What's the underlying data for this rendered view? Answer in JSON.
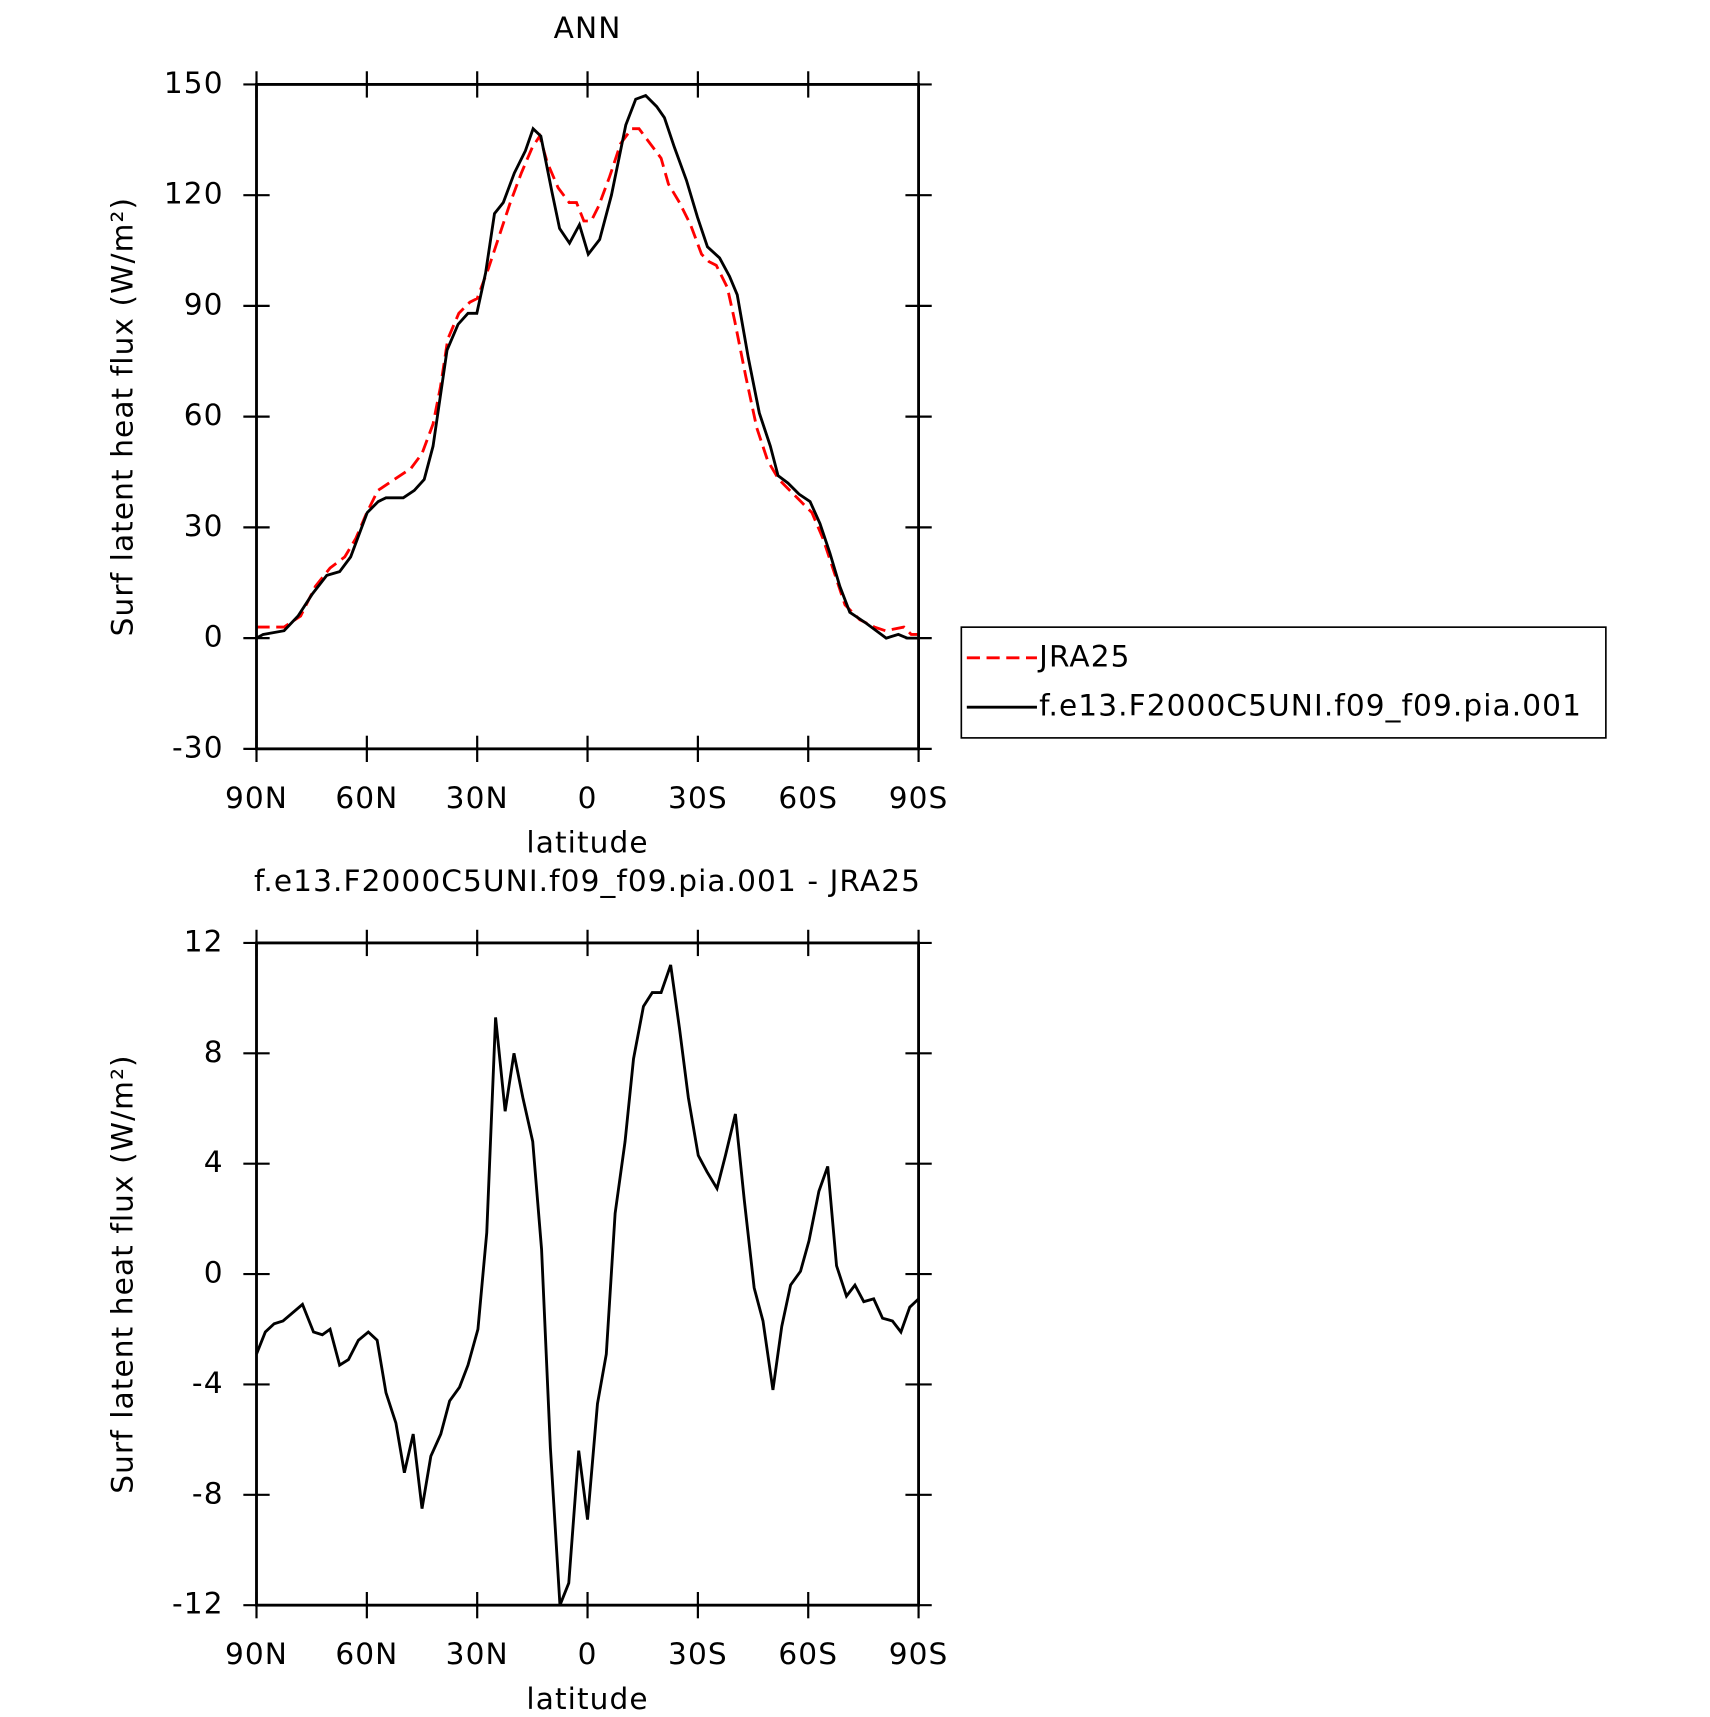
{
  "chart_data": [
    {
      "type": "line",
      "title": "ANN",
      "xlabel": "latitude",
      "ylabel": "Surf latent heat flux (W/m²)",
      "xlim": [
        90,
        -90
      ],
      "xticks": [
        {
          "value": 90,
          "label": "90N"
        },
        {
          "value": 60,
          "label": "60N"
        },
        {
          "value": 30,
          "label": "30N"
        },
        0,
        {
          "value": -30,
          "label": "30S"
        },
        {
          "value": -60,
          "label": "60S"
        },
        {
          "value": -90,
          "label": "90S"
        }
      ],
      "ylim": [
        -30,
        150
      ],
      "yticks": [
        -30,
        0,
        30,
        60,
        90,
        120,
        150
      ],
      "legend": "right",
      "series": [
        {
          "name": "JRA25",
          "color": "#ff0000",
          "dashed": true,
          "x": [
            90,
            82.5,
            78,
            74,
            70,
            66,
            63,
            60,
            57,
            54,
            51,
            48,
            45,
            42,
            40,
            38,
            35,
            32,
            30,
            27,
            24,
            21,
            18,
            15,
            13,
            11,
            8,
            5,
            3,
            1,
            -1,
            -3,
            -6,
            -9,
            -12,
            -14,
            -17,
            -20,
            -22,
            -25,
            -28,
            -31,
            -33,
            -35,
            -38,
            -40,
            -43,
            -46,
            -49,
            -52,
            -55,
            -58,
            -61,
            -64,
            -67,
            -70,
            -74,
            -78,
            -81,
            -86,
            -88,
            -90
          ],
          "values": [
            3,
            3,
            6,
            14,
            19,
            22,
            27,
            34,
            40,
            42,
            44,
            46,
            50,
            58,
            68,
            81,
            88,
            91,
            92,
            100,
            109,
            118,
            126,
            133,
            136,
            129,
            122,
            118,
            118,
            113,
            113,
            117,
            125,
            134,
            138,
            138,
            134,
            130,
            123,
            118,
            112,
            104,
            102,
            101,
            95,
            86,
            71,
            57,
            48,
            43,
            40,
            37,
            34,
            27,
            18,
            9,
            5,
            3,
            2,
            3,
            1,
            1
          ]
        },
        {
          "name": "f.e13.F2000C5UNI.f09_f09.pia.001",
          "color": "#000000",
          "dashed": false,
          "x": [
            90,
            88.2,
            82.5,
            78.7,
            74.8,
            70.9,
            67.4,
            64.4,
            59.9,
            56.9,
            54.8,
            50.1,
            47.1,
            44.4,
            42,
            38.2,
            35.2,
            32.5,
            30.1,
            27.7,
            25.3,
            22.9,
            19.9,
            16.9,
            14.8,
            12.7,
            9.7,
            7.6,
            4.9,
            2.2,
            -0.2,
            -3.3,
            -6.5,
            -10.4,
            -13.1,
            -15.8,
            -18.8,
            -20.9,
            -23.6,
            -26.9,
            -29.9,
            -32.6,
            -35.9,
            -38.6,
            -40.7,
            -43.7,
            -46.7,
            -49.7,
            -51.8,
            -54.5,
            -57.5,
            -60.5,
            -63.2,
            -65.9,
            -68.6,
            -71.3,
            -75.8,
            -81.2,
            -84.5,
            -86.9,
            -90
          ],
          "values": [
            0,
            1,
            2,
            6,
            12,
            17,
            18,
            22,
            34,
            37,
            38,
            38,
            40,
            43,
            52,
            78,
            85,
            88,
            88,
            99,
            115,
            118,
            126,
            132,
            138,
            136,
            121,
            111,
            107,
            112,
            104,
            108,
            120,
            139,
            146,
            147,
            144,
            141,
            133,
            124,
            114,
            106,
            103,
            98,
            93,
            76,
            61,
            52,
            44,
            42,
            39,
            37,
            31,
            23,
            14,
            7,
            4,
            0,
            1,
            0,
            0
          ]
        }
      ]
    },
    {
      "type": "line",
      "title": "f.e13.F2000C5UNI.f09_f09.pia.001 - JRA25",
      "xlabel": "latitude",
      "ylabel": "Surf latent heat flux (W/m²)",
      "xlim": [
        90,
        -90
      ],
      "xticks": [
        {
          "value": 90,
          "label": "90N"
        },
        {
          "value": 60,
          "label": "60N"
        },
        {
          "value": 30,
          "label": "30N"
        },
        0,
        {
          "value": -30,
          "label": "30S"
        },
        {
          "value": -60,
          "label": "60S"
        },
        {
          "value": -90,
          "label": "90S"
        }
      ],
      "ylim": [
        -12,
        12
      ],
      "yticks": [
        -12,
        -8,
        -4,
        0,
        4,
        8,
        12
      ],
      "series": [
        {
          "color": "#000000",
          "dashed": false,
          "x": [
            90,
            87.6,
            85.2,
            82.8,
            77.5,
            74.5,
            72.1,
            70,
            67.4,
            65,
            62.3,
            59.6,
            57.2,
            54.8,
            52.1,
            49.8,
            47.4,
            45,
            42.6,
            39.9,
            37.5,
            34.8,
            32.5,
            29.8,
            27.4,
            25,
            22.4,
            20,
            17.6,
            14.9,
            12.5,
            10.1,
            7.5,
            5.1,
            2.4,
            0,
            -2.7,
            -5.1,
            -7.5,
            -10.2,
            -12.5,
            -15.2,
            -17.6,
            -20,
            -22.6,
            -25,
            -27.4,
            -30.1,
            -32.5,
            -35.2,
            -37.5,
            -40.2,
            -42.6,
            -45.3,
            -47.7,
            -50.4,
            -52.8,
            -55.2,
            -57.9,
            -60.2,
            -62.9,
            -65.3,
            -67.7,
            -70.4,
            -72.7,
            -75.1,
            -77.8,
            -80.2,
            -82.9,
            -85.2,
            -87.6,
            -90
          ],
          "values": [
            -2.9,
            -2.1,
            -1.8,
            -1.7,
            -1.1,
            -2.1,
            -2.2,
            -2,
            -3.3,
            -3.1,
            -2.4,
            -2.1,
            -2.4,
            -4.3,
            -5.4,
            -7.2,
            -5.8,
            -8.5,
            -6.6,
            -5.8,
            -4.6,
            -4.1,
            -3.3,
            -2,
            1.5,
            9.3,
            5.9,
            8,
            6.4,
            4.8,
            0.9,
            -6.3,
            -12,
            -11.2,
            -6.4,
            -8.9,
            -4.7,
            -2.9,
            2.2,
            4.8,
            7.8,
            9.7,
            10.2,
            10.2,
            11.2,
            8.9,
            6.4,
            4.3,
            3.7,
            3.1,
            4.3,
            5.8,
            2.7,
            -0.5,
            -1.7,
            -4.2,
            -1.9,
            -0.4,
            0.1,
            1.2,
            3,
            3.9,
            0.3,
            -0.8,
            -0.4,
            -1,
            -0.9,
            -1.6,
            -1.7,
            -2.1,
            -1.2,
            -0.9
          ]
        }
      ]
    }
  ]
}
